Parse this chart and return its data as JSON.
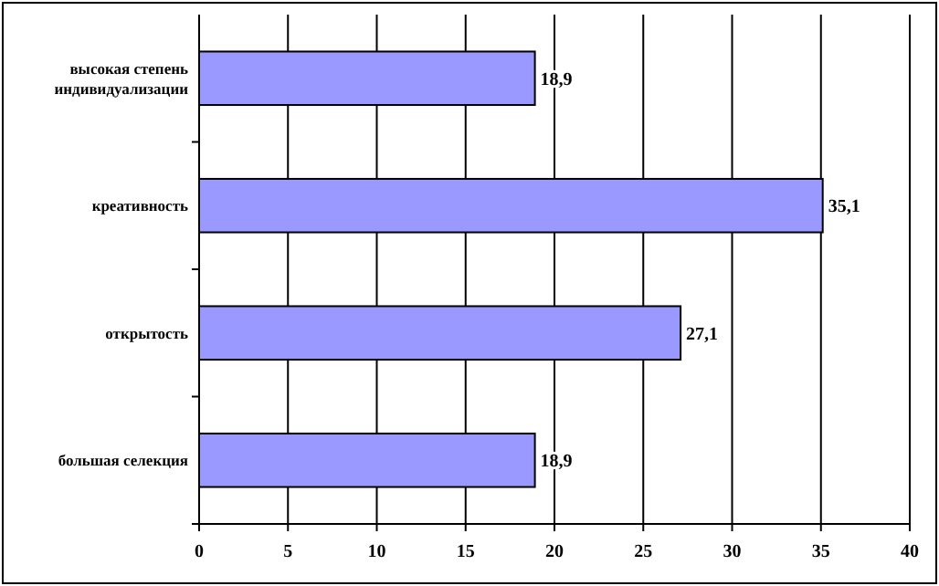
{
  "chart_data": {
    "type": "bar",
    "orientation": "horizontal",
    "categories": [
      "высокая степень индивидуализации",
      "креативность",
      "открытость",
      "большая селекция"
    ],
    "values": [
      18.9,
      35.1,
      27.1,
      18.9
    ],
    "value_labels": [
      "18,9",
      "35,1",
      "27,1",
      "18,9"
    ],
    "color": "#9999ff",
    "xlim": [
      0,
      40
    ],
    "xticks": [
      0,
      5,
      10,
      15,
      20,
      25,
      30,
      35,
      40
    ],
    "grid": "x"
  }
}
